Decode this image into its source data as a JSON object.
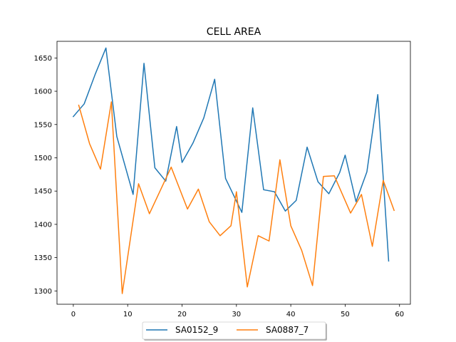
{
  "chart_data": {
    "type": "line",
    "title": "CELL AREA",
    "xlabel": "",
    "ylabel": "",
    "xlim": [
      -3.0,
      62.0
    ],
    "ylim": [
      1280,
      1675
    ],
    "xticks": [
      0,
      10,
      20,
      30,
      40,
      50,
      60
    ],
    "yticks": [
      1300,
      1350,
      1400,
      1450,
      1500,
      1550,
      1600,
      1650
    ],
    "grid": false,
    "legend_position": "bottom-center",
    "series": [
      {
        "name": "SA0152_9",
        "color": "#1f77b4",
        "points": [
          [
            0,
            1562
          ],
          [
            2,
            1581
          ],
          [
            4,
            1625
          ],
          [
            6,
            1665
          ],
          [
            8,
            1532
          ],
          [
            11,
            1445
          ],
          [
            13,
            1642
          ],
          [
            15,
            1485
          ],
          [
            17,
            1465
          ],
          [
            19,
            1547
          ],
          [
            20,
            1493
          ],
          [
            22,
            1522
          ],
          [
            24,
            1560
          ],
          [
            26,
            1618
          ],
          [
            28,
            1469
          ],
          [
            31,
            1418
          ],
          [
            33,
            1575
          ],
          [
            35,
            1452
          ],
          [
            37,
            1449
          ],
          [
            39,
            1420
          ],
          [
            41,
            1436
          ],
          [
            43,
            1516
          ],
          [
            45,
            1464
          ],
          [
            47,
            1446
          ],
          [
            49,
            1478
          ],
          [
            50,
            1504
          ],
          [
            52,
            1434
          ],
          [
            54,
            1479
          ],
          [
            56,
            1595
          ],
          [
            58,
            1345
          ]
        ]
      },
      {
        "name": "SA0887_7",
        "color": "#ff7f0e",
        "points": [
          [
            1,
            1579
          ],
          [
            3,
            1521
          ],
          [
            5,
            1483
          ],
          [
            7,
            1584
          ],
          [
            9,
            1296
          ],
          [
            12,
            1461
          ],
          [
            14,
            1416
          ],
          [
            16,
            1451
          ],
          [
            18,
            1486
          ],
          [
            21,
            1423
          ],
          [
            23,
            1453
          ],
          [
            25,
            1404
          ],
          [
            27,
            1383
          ],
          [
            29,
            1398
          ],
          [
            30,
            1449
          ],
          [
            32,
            1306
          ],
          [
            34,
            1383
          ],
          [
            36,
            1375
          ],
          [
            38,
            1497
          ],
          [
            40,
            1398
          ],
          [
            42,
            1361
          ],
          [
            44,
            1308
          ],
          [
            46,
            1472
          ],
          [
            48,
            1473
          ],
          [
            51,
            1417
          ],
          [
            53,
            1445
          ],
          [
            55,
            1367
          ],
          [
            57,
            1466
          ],
          [
            59,
            1421
          ]
        ]
      }
    ]
  }
}
